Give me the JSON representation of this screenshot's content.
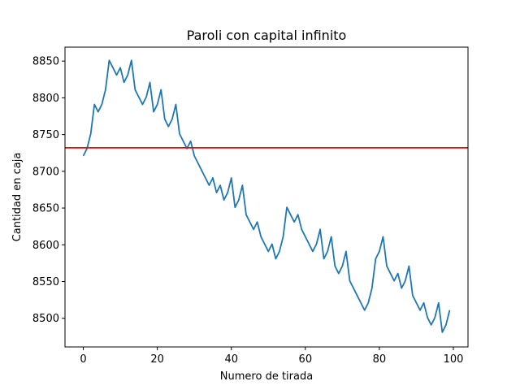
{
  "chart_data": {
    "type": "line",
    "title": "Paroli con capital infinito",
    "xlabel": "Numero de tirada",
    "ylabel": "Cantidad en caja",
    "xlim": [
      -4.95,
      103.95
    ],
    "ylim": [
      8461,
      8869
    ],
    "x_ticks": [
      0,
      20,
      40,
      60,
      80,
      100
    ],
    "y_ticks": [
      8500,
      8550,
      8600,
      8650,
      8700,
      8750,
      8800,
      8850
    ],
    "grid": false,
    "series": [
      {
        "color": "#1f77b4",
        "x": [
          0,
          1,
          2,
          3,
          4,
          5,
          6,
          7,
          8,
          9,
          10,
          11,
          12,
          13,
          14,
          15,
          16,
          17,
          18,
          19,
          20,
          21,
          22,
          23,
          24,
          25,
          26,
          27,
          28,
          29,
          30,
          31,
          32,
          33,
          34,
          35,
          36,
          37,
          38,
          39,
          40,
          41,
          42,
          43,
          44,
          45,
          46,
          47,
          48,
          49,
          50,
          51,
          52,
          53,
          54,
          55,
          56,
          57,
          58,
          59,
          60,
          61,
          62,
          63,
          64,
          65,
          66,
          67,
          68,
          69,
          70,
          71,
          72,
          73,
          74,
          75,
          76,
          77,
          78,
          79,
          80,
          81,
          82,
          83,
          84,
          85,
          86,
          87,
          88,
          89,
          90,
          91,
          92,
          93,
          94,
          95,
          96,
          97,
          98,
          99
        ],
        "values": [
          8721,
          8731,
          8751,
          8791,
          8781,
          8791,
          8811,
          8851,
          8841,
          8831,
          8841,
          8821,
          8831,
          8851,
          8811,
          8801,
          8791,
          8801,
          8821,
          8781,
          8791,
          8811,
          8771,
          8761,
          8771,
          8791,
          8751,
          8741,
          8731,
          8741,
          8721,
          8711,
          8701,
          8691,
          8681,
          8691,
          8671,
          8681,
          8661,
          8671,
          8691,
          8651,
          8661,
          8681,
          8641,
          8631,
          8621,
          8631,
          8611,
          8601,
          8591,
          8601,
          8581,
          8591,
          8611,
          8651,
          8641,
          8631,
          8641,
          8621,
          8611,
          8601,
          8591,
          8601,
          8621,
          8581,
          8591,
          8611,
          8571,
          8561,
          8571,
          8591,
          8551,
          8541,
          8531,
          8521,
          8511,
          8521,
          8541,
          8581,
          8591,
          8611,
          8571,
          8561,
          8551,
          8561,
          8541,
          8551,
          8571,
          8531,
          8521,
          8511,
          8521,
          8501,
          8491,
          8501,
          8521,
          8481,
          8491,
          8511
        ]
      }
    ],
    "hline": {
      "value": 8732,
      "color": "#ff0000"
    }
  }
}
